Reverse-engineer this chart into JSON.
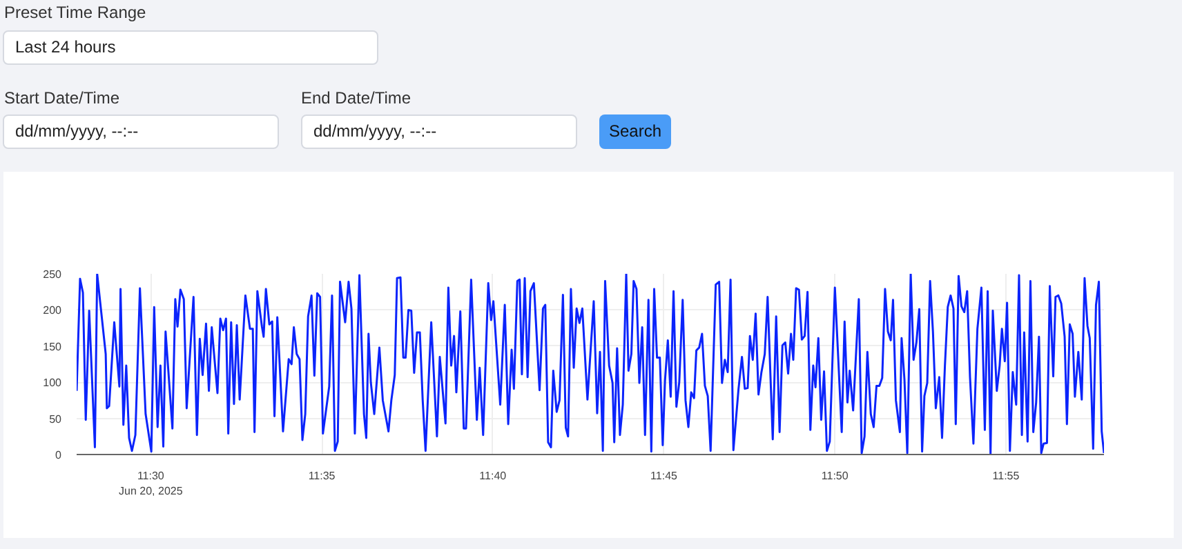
{
  "chart_data": [
    {
      "type": "other",
      "annotations": [
        "Preset Time Range",
        "Last 24 hours",
        "Start Date/Time",
        "dd/mm/yyyy, --:--",
        "End Date/Time",
        "dd/mm/yyyy, --:--",
        "Search"
      ]
    },
    {
      "type": "line",
      "x": [
        "2025-06-20T11:27:50",
        "2025-06-20T11:27:56",
        "2025-06-20T11:28:01",
        "2025-06-20T11:28:06",
        "2025-06-20T11:28:12",
        "2025-06-20T11:28:22",
        "2025-06-20T11:28:26",
        "2025-06-20T11:28:41",
        "2025-06-20T11:28:43",
        "2025-06-20T11:28:47",
        "2025-06-20T11:28:56",
        "2025-06-20T11:29:05",
        "2025-06-20T11:29:07",
        "2025-06-20T11:29:12",
        "2025-06-20T11:29:17",
        "2025-06-20T11:29:22",
        "2025-06-20T11:29:27",
        "2025-06-20T11:29:33",
        "2025-06-20T11:29:41",
        "2025-06-20T11:29:51",
        "2025-06-20T11:30:01",
        "2025-06-20T11:30:06",
        "2025-06-20T11:30:12",
        "2025-06-20T11:30:17",
        "2025-06-20T11:30:22",
        "2025-06-20T11:30:26",
        "2025-06-20T11:30:38",
        "2025-06-20T11:30:43",
        "2025-06-20T11:30:47",
        "2025-06-20T11:30:52",
        "2025-06-20T11:30:58",
        "2025-06-20T11:31:03",
        "2025-06-20T11:31:15",
        "2025-06-20T11:31:21",
        "2025-06-20T11:31:26",
        "2025-06-20T11:31:31",
        "2025-06-20T11:31:37",
        "2025-06-20T11:31:42",
        "2025-06-20T11:31:47",
        "2025-06-20T11:31:57",
        "2025-06-20T11:32:02",
        "2025-06-20T11:32:07",
        "2025-06-20T11:32:12",
        "2025-06-20T11:32:16",
        "2025-06-20T11:32:21",
        "2025-06-20T11:32:26",
        "2025-06-20T11:32:31",
        "2025-06-20T11:32:36",
        "2025-06-20T11:32:46",
        "2025-06-20T11:32:54",
        "2025-06-20T11:32:59",
        "2025-06-20T11:33:02",
        "2025-06-20T11:33:07",
        "2025-06-20T11:33:15",
        "2025-06-20T11:33:18",
        "2025-06-20T11:33:22",
        "2025-06-20T11:33:28",
        "2025-06-20T11:33:33",
        "2025-06-20T11:33:37",
        "2025-06-20T11:33:42",
        "2025-06-20T11:33:52",
        "2025-06-20T11:34:02",
        "2025-06-20T11:34:07",
        "2025-06-20T11:34:11",
        "2025-06-20T11:34:16",
        "2025-06-20T11:34:21",
        "2025-06-20T11:34:26",
        "2025-06-20T11:34:31",
        "2025-06-20T11:34:36",
        "2025-06-20T11:34:42",
        "2025-06-20T11:34:47",
        "2025-06-20T11:34:52",
        "2025-06-20T11:34:57",
        "2025-06-20T11:35:02",
        "2025-06-20T11:35:13",
        "2025-06-20T11:35:18",
        "2025-06-20T11:35:23",
        "2025-06-20T11:35:28",
        "2025-06-20T11:35:32",
        "2025-06-20T11:35:41",
        "2025-06-20T11:35:47",
        "2025-06-20T11:35:52",
        "2025-06-20T11:35:58",
        "2025-06-20T11:36:06",
        "2025-06-20T11:36:14",
        "2025-06-20T11:36:18",
        "2025-06-20T11:36:22",
        "2025-06-20T11:36:26",
        "2025-06-20T11:36:32",
        "2025-06-20T11:36:41",
        "2025-06-20T11:36:47",
        "2025-06-20T11:36:57",
        "2025-06-20T11:37:02",
        "2025-06-20T11:37:08",
        "2025-06-20T11:37:12",
        "2025-06-20T11:37:18",
        "2025-06-20T11:37:23",
        "2025-06-20T11:37:27",
        "2025-06-20T11:37:32",
        "2025-06-20T11:37:37",
        "2025-06-20T11:37:42",
        "2025-06-20T11:37:47",
        "2025-06-20T11:37:52",
        "2025-06-20T11:37:57",
        "2025-06-20T11:38:02",
        "2025-06-20T11:38:12",
        "2025-06-20T11:38:22",
        "2025-06-20T11:38:27",
        "2025-06-20T11:38:37",
        "2025-06-20T11:38:42",
        "2025-06-20T11:38:47",
        "2025-06-20T11:38:52",
        "2025-06-20T11:38:56",
        "2025-06-20T11:39:03",
        "2025-06-20T11:39:09",
        "2025-06-20T11:39:13",
        "2025-06-20T11:39:22",
        "2025-06-20T11:39:32",
        "2025-06-20T11:39:37",
        "2025-06-20T11:39:43",
        "2025-06-20T11:39:52",
        "2025-06-20T11:39:57",
        "2025-06-20T11:40:01",
        "2025-06-20T11:40:13",
        "2025-06-20T11:40:21",
        "2025-06-20T11:40:27",
        "2025-06-20T11:40:33",
        "2025-06-20T11:40:37",
        "2025-06-20T11:40:43",
        "2025-06-20T11:40:47",
        "2025-06-20T11:40:51",
        "2025-06-20T11:40:56",
        "2025-06-20T11:41:01",
        "2025-06-20T11:41:06",
        "2025-06-20T11:41:12",
        "2025-06-20T11:41:22",
        "2025-06-20T11:41:28",
        "2025-06-20T11:41:32",
        "2025-06-20T11:41:37",
        "2025-06-20T11:41:42",
        "2025-06-20T11:41:46",
        "2025-06-20T11:41:52",
        "2025-06-20T11:41:57",
        "2025-06-20T11:42:03",
        "2025-06-20T11:42:08",
        "2025-06-20T11:42:12",
        "2025-06-20T11:42:17",
        "2025-06-20T11:42:22",
        "2025-06-20T11:42:27",
        "2025-06-20T11:42:32",
        "2025-06-20T11:42:37",
        "2025-06-20T11:42:46",
        "2025-06-20T11:42:57",
        "2025-06-20T11:43:03",
        "2025-06-20T11:43:08",
        "2025-06-20T11:43:13",
        "2025-06-20T11:43:17",
        "2025-06-20T11:43:24",
        "2025-06-20T11:43:30",
        "2025-06-20T11:43:33",
        "2025-06-20T11:43:38",
        "2025-06-20T11:43:43",
        "2025-06-20T11:43:48",
        "2025-06-20T11:43:54",
        "2025-06-20T11:43:58",
        "2025-06-20T11:44:03",
        "2025-06-20T11:44:07",
        "2025-06-20T11:44:12",
        "2025-06-20T11:44:17",
        "2025-06-20T11:44:22",
        "2025-06-20T11:44:27",
        "2025-06-20T11:44:33",
        "2025-06-20T11:44:38",
        "2025-06-20T11:44:43",
        "2025-06-20T11:44:48",
        "2025-06-20T11:44:53",
        "2025-06-20T11:44:58",
        "2025-06-20T11:45:02",
        "2025-06-20T11:45:07",
        "2025-06-20T11:45:12",
        "2025-06-20T11:45:17",
        "2025-06-20T11:45:22",
        "2025-06-20T11:45:27",
        "2025-06-20T11:45:33",
        "2025-06-20T11:45:38",
        "2025-06-20T11:45:43",
        "2025-06-20T11:45:48",
        "2025-06-20T11:45:53",
        "2025-06-20T11:45:57",
        "2025-06-20T11:46:02",
        "2025-06-20T11:46:07",
        "2025-06-20T11:46:12",
        "2025-06-20T11:46:17",
        "2025-06-20T11:46:22",
        "2025-06-20T11:46:31",
        "2025-06-20T11:46:37",
        "2025-06-20T11:46:42",
        "2025-06-20T11:46:47",
        "2025-06-20T11:46:52",
        "2025-06-20T11:46:57",
        "2025-06-20T11:47:02",
        "2025-06-20T11:47:11",
        "2025-06-20T11:47:17",
        "2025-06-20T11:47:22",
        "2025-06-20T11:47:27",
        "2025-06-20T11:47:31",
        "2025-06-20T11:47:36",
        "2025-06-20T11:47:41",
        "2025-06-20T11:47:46",
        "2025-06-20T11:47:51",
        "2025-06-20T11:47:57",
        "2025-06-20T11:48:02",
        "2025-06-20T11:48:11",
        "2025-06-20T11:48:17",
        "2025-06-20T11:48:23",
        "2025-06-20T11:48:28",
        "2025-06-20T11:48:33",
        "2025-06-20T11:48:38",
        "2025-06-20T11:48:43",
        "2025-06-20T11:48:47",
        "2025-06-20T11:48:52",
        "2025-06-20T11:48:57",
        "2025-06-20T11:49:02",
        "2025-06-20T11:49:07",
        "2025-06-20T11:49:12",
        "2025-06-20T11:49:17",
        "2025-06-20T11:49:22",
        "2025-06-20T11:49:26",
        "2025-06-20T11:49:31",
        "2025-06-20T11:49:36",
        "2025-06-20T11:49:41",
        "2025-06-20T11:49:46",
        "2025-06-20T11:49:51",
        "2025-06-20T11:50:00",
        "2025-06-20T11:50:12",
        "2025-06-20T11:50:17",
        "2025-06-20T11:50:22",
        "2025-06-20T11:50:26",
        "2025-06-20T11:50:32",
        "2025-06-20T11:50:42",
        "2025-06-20T11:50:47",
        "2025-06-20T11:50:52",
        "2025-06-20T11:50:57",
        "2025-06-20T11:51:03",
        "2025-06-20T11:51:08",
        "2025-06-20T11:51:13",
        "2025-06-20T11:51:18",
        "2025-06-20T11:51:23",
        "2025-06-20T11:51:28",
        "2025-06-20T11:51:33",
        "2025-06-20T11:51:38",
        "2025-06-20T11:51:42",
        "2025-06-20T11:51:47",
        "2025-06-20T11:51:54",
        "2025-06-20T11:51:57",
        "2025-06-20T11:52:02",
        "2025-06-20T11:52:07",
        "2025-06-20T11:52:13",
        "2025-06-20T11:52:18",
        "2025-06-20T11:52:23",
        "2025-06-20T11:52:28",
        "2025-06-20T11:52:33",
        "2025-06-20T11:52:37",
        "2025-06-20T11:52:42",
        "2025-06-20T11:52:47",
        "2025-06-20T11:52:52",
        "2025-06-20T11:52:57",
        "2025-06-20T11:53:03",
        "2025-06-20T11:53:08",
        "2025-06-20T11:53:13",
        "2025-06-20T11:53:18",
        "2025-06-20T11:53:23",
        "2025-06-20T11:53:28",
        "2025-06-20T11:53:32",
        "2025-06-20T11:53:37",
        "2025-06-20T11:53:42",
        "2025-06-20T11:53:47",
        "2025-06-20T11:53:52",
        "2025-06-20T11:53:57",
        "2025-06-20T11:54:03",
        "2025-06-20T11:54:10",
        "2025-06-20T11:54:17",
        "2025-06-20T11:54:23",
        "2025-06-20T11:54:28",
        "2025-06-20T11:54:33",
        "2025-06-20T11:54:37",
        "2025-06-20T11:54:44",
        "2025-06-20T11:54:49",
        "2025-06-20T11:54:53",
        "2025-06-20T11:54:58",
        "2025-06-20T11:55:02",
        "2025-06-20T11:55:07",
        "2025-06-20T11:55:12",
        "2025-06-20T11:55:18",
        "2025-06-20T11:55:23",
        "2025-06-20T11:55:28",
        "2025-06-20T11:55:32",
        "2025-06-20T11:55:38",
        "2025-06-20T11:55:43",
        "2025-06-20T11:55:48",
        "2025-06-20T11:55:53",
        "2025-06-20T11:55:58",
        "2025-06-20T11:56:02",
        "2025-06-20T11:56:06",
        "2025-06-20T11:56:12",
        "2025-06-20T11:56:17",
        "2025-06-20T11:56:23",
        "2025-06-20T11:56:27",
        "2025-06-20T11:56:32",
        "2025-06-20T11:56:37",
        "2025-06-20T11:56:43",
        "2025-06-20T11:56:47",
        "2025-06-20T11:56:52",
        "2025-06-20T11:56:57",
        "2025-06-20T11:57:01",
        "2025-06-20T11:57:07",
        "2025-06-20T11:57:13",
        "2025-06-20T11:57:18",
        "2025-06-20T11:57:23",
        "2025-06-20T11:57:27",
        "2025-06-20T11:57:33",
        "2025-06-20T11:57:38",
        "2025-06-20T11:57:43",
        "2025-06-20T11:57:48",
        "2025-06-20T11:57:52"
      ],
      "series": [
        {
          "color": "#0b24fb",
          "values": [
            88,
            243,
            224,
            48,
            199,
            10,
            250,
            139,
            64,
            67,
            183,
            94,
            229,
            41,
            123,
            23,
            5,
            27,
            230,
            56,
            4,
            204,
            38,
            123,
            11,
            170,
            36,
            215,
            177,
            228,
            215,
            64,
            218,
            27,
            160,
            110,
            181,
            88,
            176,
            85,
            188,
            172,
            188,
            29,
            183,
            70,
            179,
            76,
            220,
            174,
            174,
            31,
            226,
            177,
            163,
            229,
            180,
            184,
            53,
            190,
            32,
            132,
            125,
            176,
            139,
            132,
            20,
            56,
            191,
            220,
            109,
            223,
            218,
            29,
            94,
            220,
            5,
            18,
            239,
            183,
            239,
            202,
            29,
            248,
            56,
            23,
            167,
            100,
            56,
            148,
            75,
            32,
            75,
            110,
            244,
            245,
            134,
            134,
            200,
            199,
            113,
            169,
            169,
            75,
            5,
            183,
            25,
            135,
            43,
            231,
            123,
            164,
            86,
            198,
            36,
            36,
            242,
            48,
            120,
            27,
            237,
            186,
            212,
            69,
            207,
            42,
            145,
            91,
            240,
            242,
            111,
            244,
            107,
            226,
            237,
            89,
            202,
            207,
            17,
            10,
            116,
            59,
            75,
            221,
            37,
            25,
            229,
            120,
            202,
            182,
            202,
            76,
            212,
            57,
            142,
            5,
            240,
            123,
            99,
            17,
            147,
            27,
            69,
            250,
            116,
            139,
            240,
            229,
            99,
            176,
            27,
            214,
            4,
            229,
            134,
            134,
            13,
            102,
            158,
            80,
            226,
            66,
            100,
            214,
            75,
            38,
            86,
            78,
            144,
            148,
            167,
            95,
            81,
            5,
            235,
            239,
            99,
            131,
            114,
            242,
            6,
            91,
            135,
            91,
            92,
            164,
            131,
            195,
            83,
            113,
            139,
            218,
            21,
            191,
            31,
            151,
            155,
            112,
            167,
            131,
            230,
            228,
            159,
            164,
            225,
            34,
            123,
            93,
            161,
            48,
            115,
            5,
            18,
            231,
            31,
            184,
            72,
            116,
            61,
            215,
            2,
            25,
            142,
            56,
            38,
            95,
            95,
            106,
            229,
            170,
            158,
            214,
            75,
            31,
            161,
            104,
            2,
            250,
            131,
            155,
            201,
            4,
            81,
            99,
            240,
            170,
            64,
            107,
            23,
            123,
            204,
            220,
            202,
            42,
            247,
            205,
            197,
            226,
            107,
            15,
            174,
            231,
            34,
            226,
            1,
            199,
            88,
            123,
            174,
            129,
            210,
            5,
            114,
            69,
            248,
            27,
            169,
            18,
            240,
            31,
            72,
            163,
            2,
            15,
            16,
            233,
            108,
            218,
            220,
            209,
            163,
            42,
            180,
            167,
            80,
            142,
            76,
            244,
            178,
            161,
            8,
            207,
            239,
            32,
            2
          ]
        }
      ],
      "xlim": [
        "2025-06-20T11:27:50",
        "2025-06-20T11:57:52"
      ],
      "xticks": [
        {
          "value": "2025-06-20T11:30",
          "label": "11:30\nJun 20, 2025"
        },
        {
          "value": "2025-06-20T11:35",
          "label": "11:35"
        },
        {
          "value": "2025-06-20T11:40",
          "label": "11:40"
        },
        {
          "value": "2025-06-20T11:45",
          "label": "11:45"
        },
        {
          "value": "2025-06-20T11:50",
          "label": "11:50"
        },
        {
          "value": "2025-06-20T11:55",
          "label": "11:55"
        }
      ],
      "ylim": [
        0,
        250
      ],
      "yticks": [
        0,
        50,
        100,
        150,
        200,
        250
      ],
      "grid": true,
      "line_style": "solid",
      "marker": "none"
    }
  ]
}
